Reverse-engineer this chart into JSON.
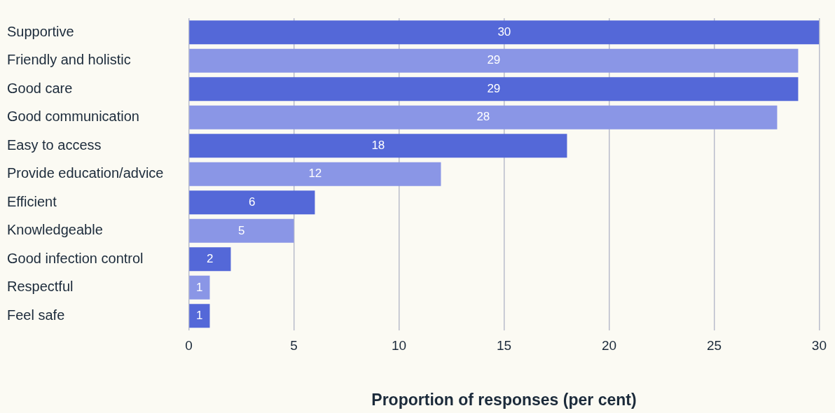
{
  "chart_data": {
    "type": "bar",
    "orientation": "horizontal",
    "categories": [
      "Supportive",
      "Friendly and holistic",
      "Good care",
      "Good communication",
      "Easy to access",
      "Provide education/advice",
      "Efficient",
      "Knowledgeable",
      "Good infection control",
      "Respectful",
      "Feel safe"
    ],
    "values": [
      30,
      29,
      29,
      28,
      18,
      12,
      6,
      5,
      2,
      1,
      1
    ],
    "colors": [
      "#5468d8",
      "#8a96e6",
      "#5468d8",
      "#8a96e6",
      "#5468d8",
      "#8a96e6",
      "#5468d8",
      "#8a96e6",
      "#5468d8",
      "#8a96e6",
      "#5468d8"
    ],
    "xlabel": "Proportion of responses (per cent)",
    "xlim": [
      0,
      30
    ],
    "xticks": [
      0,
      5,
      10,
      15,
      20,
      25,
      30
    ],
    "grid": "x",
    "legend": false,
    "data_labels": true
  }
}
